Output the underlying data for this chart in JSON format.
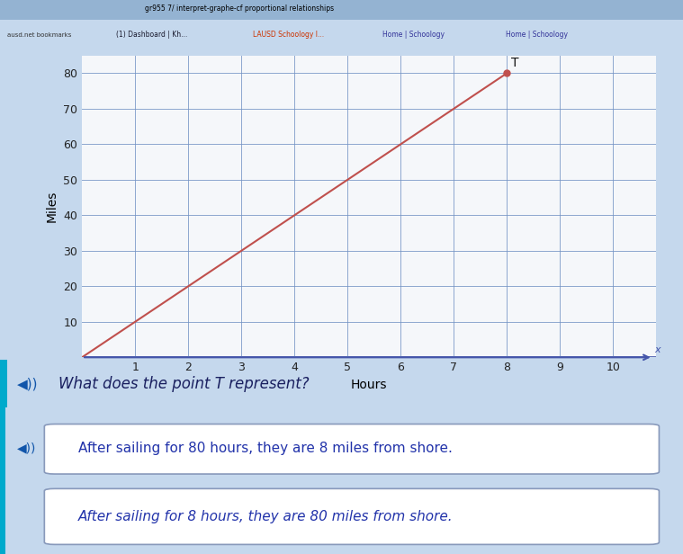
{
  "title": "",
  "xlabel": "Hours",
  "ylabel": "Miles",
  "xlim": [
    0,
    10.8
  ],
  "ylim": [
    0,
    85
  ],
  "x_ticks": [
    1,
    2,
    3,
    4,
    5,
    6,
    7,
    8,
    9,
    10
  ],
  "y_ticks": [
    10,
    20,
    30,
    40,
    50,
    60,
    70,
    80
  ],
  "line_x": [
    0,
    8
  ],
  "line_y": [
    0,
    80
  ],
  "point_T_x": 8,
  "point_T_y": 80,
  "line_color": "#c0504d",
  "point_color": "#c0504d",
  "grid_color": "#7393c4",
  "chart_bg": "#f5f7fa",
  "overall_bg": "#c5d8ed",
  "browser_bg": "#a8c0d8",
  "question_area_bg": "#dde8f5",
  "answer_area_bg": "#ffffff",
  "answer_border": "#8899bb",
  "answer_text_color": "#2233aa",
  "question_text_color": "#1a2060",
  "speaker_color": "#1155aa",
  "teal_strip_color": "#00aacc",
  "arrow_color": "#4455aa",
  "tick_color": "#222222",
  "question_text": "What does the point T represent?",
  "answer1": "After sailing for 80 hours, they are 8 miles from shore.",
  "answer2": "After sailing for 8 hours, they are 80 miles from shore.",
  "axis_label_fontsize": 10,
  "tick_fontsize": 9,
  "answer_fontsize": 11,
  "question_fontsize": 12
}
